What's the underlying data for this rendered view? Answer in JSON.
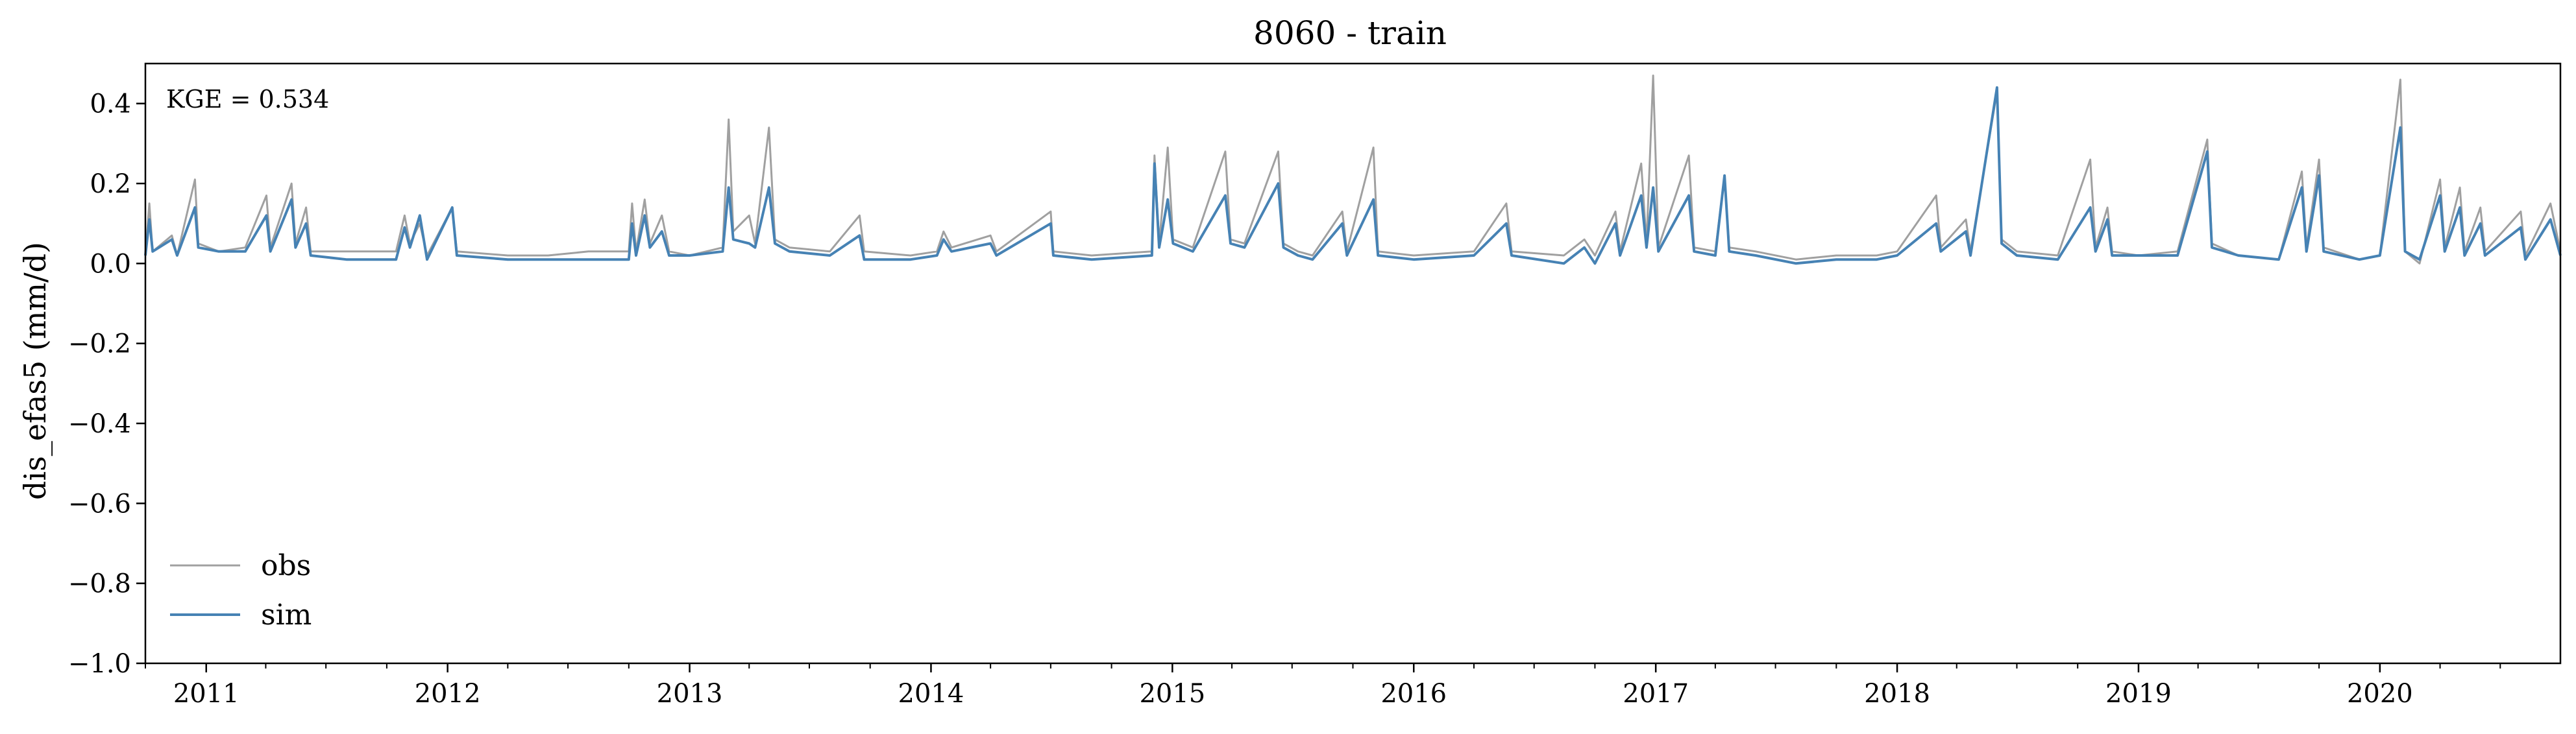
{
  "chart_data": {
    "type": "line",
    "title": "8060 - train",
    "xlabel": "",
    "ylabel": "dis_efas5 (mm/d)",
    "xlim": [
      "2010-10-01",
      "2020-09-30"
    ],
    "ylim": [
      -1.0,
      0.5
    ],
    "y_ticks": [
      -1.0,
      -0.8,
      -0.6,
      -0.4,
      -0.2,
      0.0,
      0.2,
      0.4
    ],
    "y_tick_labels": [
      "−1.0",
      "−0.8",
      "−0.6",
      "−0.4",
      "−0.2",
      "0.0",
      "0.2",
      "0.4"
    ],
    "x_ticks": [
      "2011-01-01",
      "2012-01-01",
      "2013-01-01",
      "2014-01-01",
      "2015-01-01",
      "2016-01-01",
      "2017-01-01",
      "2018-01-01",
      "2019-01-01",
      "2020-01-01"
    ],
    "x_tick_labels": [
      "2011",
      "2012",
      "2013",
      "2014",
      "2015",
      "2016",
      "2017",
      "2018",
      "2019",
      "2020"
    ],
    "grid": false,
    "legend_position": "bottom-left",
    "annotation": "KGE = 0.534",
    "series": [
      {
        "name": "obs",
        "color": "#a0a0a0",
        "points": [
          [
            "2010-10-01",
            0.02
          ],
          [
            "2010-10-07",
            0.15
          ],
          [
            "2010-10-12",
            0.03
          ],
          [
            "2010-11-10",
            0.07
          ],
          [
            "2010-11-18",
            0.02
          ],
          [
            "2010-12-15",
            0.21
          ],
          [
            "2010-12-20",
            0.05
          ],
          [
            "2011-01-20",
            0.03
          ],
          [
            "2011-03-01",
            0.04
          ],
          [
            "2011-04-02",
            0.17
          ],
          [
            "2011-04-08",
            0.04
          ],
          [
            "2011-05-10",
            0.2
          ],
          [
            "2011-05-16",
            0.05
          ],
          [
            "2011-06-01",
            0.14
          ],
          [
            "2011-06-08",
            0.03
          ],
          [
            "2011-08-01",
            0.03
          ],
          [
            "2011-10-15",
            0.03
          ],
          [
            "2011-10-28",
            0.12
          ],
          [
            "2011-11-05",
            0.05
          ],
          [
            "2011-11-20",
            0.1
          ],
          [
            "2011-12-01",
            0.02
          ],
          [
            "2012-01-08",
            0.14
          ],
          [
            "2012-01-15",
            0.03
          ],
          [
            "2012-04-01",
            0.02
          ],
          [
            "2012-06-01",
            0.02
          ],
          [
            "2012-08-01",
            0.03
          ],
          [
            "2012-10-01",
            0.03
          ],
          [
            "2012-10-06",
            0.15
          ],
          [
            "2012-10-12",
            0.03
          ],
          [
            "2012-10-25",
            0.16
          ],
          [
            "2012-11-02",
            0.05
          ],
          [
            "2012-11-20",
            0.12
          ],
          [
            "2012-12-01",
            0.03
          ],
          [
            "2013-01-01",
            0.02
          ],
          [
            "2013-02-20",
            0.04
          ],
          [
            "2013-03-01",
            0.36
          ],
          [
            "2013-03-08",
            0.08
          ],
          [
            "2013-04-01",
            0.12
          ],
          [
            "2013-04-10",
            0.05
          ],
          [
            "2013-05-01",
            0.34
          ],
          [
            "2013-05-10",
            0.06
          ],
          [
            "2013-06-01",
            0.04
          ],
          [
            "2013-08-01",
            0.03
          ],
          [
            "2013-09-15",
            0.12
          ],
          [
            "2013-09-22",
            0.03
          ],
          [
            "2013-12-01",
            0.02
          ],
          [
            "2014-01-10",
            0.03
          ],
          [
            "2014-01-20",
            0.08
          ],
          [
            "2014-02-01",
            0.04
          ],
          [
            "2014-04-01",
            0.07
          ],
          [
            "2014-04-10",
            0.03
          ],
          [
            "2014-07-01",
            0.13
          ],
          [
            "2014-07-05",
            0.03
          ],
          [
            "2014-09-01",
            0.02
          ],
          [
            "2014-12-01",
            0.03
          ],
          [
            "2014-12-05",
            0.27
          ],
          [
            "2014-12-12",
            0.05
          ],
          [
            "2014-12-25",
            0.29
          ],
          [
            "2015-01-02",
            0.06
          ],
          [
            "2015-02-01",
            0.04
          ],
          [
            "2015-03-22",
            0.28
          ],
          [
            "2015-03-30",
            0.06
          ],
          [
            "2015-04-20",
            0.05
          ],
          [
            "2015-06-10",
            0.28
          ],
          [
            "2015-06-18",
            0.05
          ],
          [
            "2015-07-10",
            0.03
          ],
          [
            "2015-08-01",
            0.02
          ],
          [
            "2015-09-15",
            0.13
          ],
          [
            "2015-09-22",
            0.03
          ],
          [
            "2015-11-01",
            0.29
          ],
          [
            "2015-11-08",
            0.03
          ],
          [
            "2016-01-01",
            0.02
          ],
          [
            "2016-04-01",
            0.03
          ],
          [
            "2016-05-20",
            0.15
          ],
          [
            "2016-05-28",
            0.03
          ],
          [
            "2016-08-15",
            0.02
          ],
          [
            "2016-09-15",
            0.06
          ],
          [
            "2016-10-01",
            0.02
          ],
          [
            "2016-11-01",
            0.13
          ],
          [
            "2016-11-08",
            0.03
          ],
          [
            "2016-12-10",
            0.25
          ],
          [
            "2016-12-18",
            0.05
          ],
          [
            "2016-12-28",
            0.47
          ],
          [
            "2017-01-05",
            0.04
          ],
          [
            "2017-02-20",
            0.27
          ],
          [
            "2017-02-28",
            0.04
          ],
          [
            "2017-04-01",
            0.03
          ],
          [
            "2017-04-15",
            0.22
          ],
          [
            "2017-04-22",
            0.04
          ],
          [
            "2017-06-01",
            0.03
          ],
          [
            "2017-08-01",
            0.01
          ],
          [
            "2017-10-01",
            0.02
          ],
          [
            "2017-12-01",
            0.02
          ],
          [
            "2018-01-01",
            0.03
          ],
          [
            "2018-03-01",
            0.17
          ],
          [
            "2018-03-08",
            0.04
          ],
          [
            "2018-04-15",
            0.11
          ],
          [
            "2018-04-22",
            0.03
          ],
          [
            "2018-06-01",
            0.43
          ],
          [
            "2018-06-08",
            0.06
          ],
          [
            "2018-07-01",
            0.03
          ],
          [
            "2018-09-01",
            0.02
          ],
          [
            "2018-10-20",
            0.26
          ],
          [
            "2018-10-28",
            0.04
          ],
          [
            "2018-11-15",
            0.14
          ],
          [
            "2018-11-22",
            0.03
          ],
          [
            "2019-01-01",
            0.02
          ],
          [
            "2019-03-01",
            0.03
          ],
          [
            "2019-04-15",
            0.31
          ],
          [
            "2019-04-22",
            0.05
          ],
          [
            "2019-06-01",
            0.02
          ],
          [
            "2019-08-01",
            0.01
          ],
          [
            "2019-09-05",
            0.23
          ],
          [
            "2019-09-12",
            0.04
          ],
          [
            "2019-10-01",
            0.26
          ],
          [
            "2019-10-08",
            0.04
          ],
          [
            "2019-12-01",
            0.01
          ],
          [
            "2020-01-01",
            0.02
          ],
          [
            "2020-02-01",
            0.46
          ],
          [
            "2020-02-08",
            0.03
          ],
          [
            "2020-03-01",
            0.0
          ],
          [
            "2020-04-01",
            0.21
          ],
          [
            "2020-04-08",
            0.04
          ],
          [
            "2020-05-01",
            0.19
          ],
          [
            "2020-05-08",
            0.03
          ],
          [
            "2020-06-01",
            0.14
          ],
          [
            "2020-06-08",
            0.03
          ],
          [
            "2020-08-01",
            0.13
          ],
          [
            "2020-08-08",
            0.02
          ],
          [
            "2020-09-15",
            0.15
          ],
          [
            "2020-09-30",
            0.03
          ]
        ]
      },
      {
        "name": "sim",
        "color": "#4682b4",
        "points": [
          [
            "2010-10-01",
            0.02
          ],
          [
            "2010-10-07",
            0.11
          ],
          [
            "2010-10-12",
            0.03
          ],
          [
            "2010-11-10",
            0.06
          ],
          [
            "2010-11-18",
            0.02
          ],
          [
            "2010-12-15",
            0.14
          ],
          [
            "2010-12-20",
            0.04
          ],
          [
            "2011-01-20",
            0.03
          ],
          [
            "2011-03-01",
            0.03
          ],
          [
            "2011-04-02",
            0.12
          ],
          [
            "2011-04-08",
            0.03
          ],
          [
            "2011-05-10",
            0.16
          ],
          [
            "2011-05-16",
            0.04
          ],
          [
            "2011-06-01",
            0.1
          ],
          [
            "2011-06-08",
            0.02
          ],
          [
            "2011-08-01",
            0.01
          ],
          [
            "2011-10-15",
            0.01
          ],
          [
            "2011-10-28",
            0.09
          ],
          [
            "2011-11-05",
            0.04
          ],
          [
            "2011-11-20",
            0.12
          ],
          [
            "2011-12-01",
            0.01
          ],
          [
            "2012-01-08",
            0.14
          ],
          [
            "2012-01-15",
            0.02
          ],
          [
            "2012-04-01",
            0.01
          ],
          [
            "2012-06-01",
            0.01
          ],
          [
            "2012-08-01",
            0.01
          ],
          [
            "2012-10-01",
            0.01
          ],
          [
            "2012-10-06",
            0.1
          ],
          [
            "2012-10-12",
            0.02
          ],
          [
            "2012-10-25",
            0.12
          ],
          [
            "2012-11-02",
            0.04
          ],
          [
            "2012-11-20",
            0.08
          ],
          [
            "2012-12-01",
            0.02
          ],
          [
            "2013-01-01",
            0.02
          ],
          [
            "2013-02-20",
            0.03
          ],
          [
            "2013-03-01",
            0.19
          ],
          [
            "2013-03-08",
            0.06
          ],
          [
            "2013-04-01",
            0.05
          ],
          [
            "2013-04-10",
            0.04
          ],
          [
            "2013-05-01",
            0.19
          ],
          [
            "2013-05-10",
            0.05
          ],
          [
            "2013-06-01",
            0.03
          ],
          [
            "2013-08-01",
            0.02
          ],
          [
            "2013-09-15",
            0.07
          ],
          [
            "2013-09-22",
            0.01
          ],
          [
            "2013-12-01",
            0.01
          ],
          [
            "2014-01-10",
            0.02
          ],
          [
            "2014-01-20",
            0.06
          ],
          [
            "2014-02-01",
            0.03
          ],
          [
            "2014-04-01",
            0.05
          ],
          [
            "2014-04-10",
            0.02
          ],
          [
            "2014-07-01",
            0.1
          ],
          [
            "2014-07-05",
            0.02
          ],
          [
            "2014-09-01",
            0.01
          ],
          [
            "2014-12-01",
            0.02
          ],
          [
            "2014-12-05",
            0.25
          ],
          [
            "2014-12-12",
            0.04
          ],
          [
            "2014-12-25",
            0.16
          ],
          [
            "2015-01-02",
            0.05
          ],
          [
            "2015-02-01",
            0.03
          ],
          [
            "2015-03-22",
            0.17
          ],
          [
            "2015-03-30",
            0.05
          ],
          [
            "2015-04-20",
            0.04
          ],
          [
            "2015-06-10",
            0.2
          ],
          [
            "2015-06-18",
            0.04
          ],
          [
            "2015-07-10",
            0.02
          ],
          [
            "2015-08-01",
            0.01
          ],
          [
            "2015-09-15",
            0.1
          ],
          [
            "2015-09-22",
            0.02
          ],
          [
            "2015-11-01",
            0.16
          ],
          [
            "2015-11-08",
            0.02
          ],
          [
            "2016-01-01",
            0.01
          ],
          [
            "2016-04-01",
            0.02
          ],
          [
            "2016-05-20",
            0.1
          ],
          [
            "2016-05-28",
            0.02
          ],
          [
            "2016-08-15",
            0.0
          ],
          [
            "2016-09-15",
            0.04
          ],
          [
            "2016-10-01",
            0.0
          ],
          [
            "2016-11-01",
            0.1
          ],
          [
            "2016-11-08",
            0.02
          ],
          [
            "2016-12-10",
            0.17
          ],
          [
            "2016-12-18",
            0.04
          ],
          [
            "2016-12-28",
            0.19
          ],
          [
            "2017-01-05",
            0.03
          ],
          [
            "2017-02-20",
            0.17
          ],
          [
            "2017-02-28",
            0.03
          ],
          [
            "2017-04-01",
            0.02
          ],
          [
            "2017-04-15",
            0.22
          ],
          [
            "2017-04-22",
            0.03
          ],
          [
            "2017-06-01",
            0.02
          ],
          [
            "2017-08-01",
            0.0
          ],
          [
            "2017-10-01",
            0.01
          ],
          [
            "2017-12-01",
            0.01
          ],
          [
            "2018-01-01",
            0.02
          ],
          [
            "2018-03-01",
            0.1
          ],
          [
            "2018-03-08",
            0.03
          ],
          [
            "2018-04-15",
            0.08
          ],
          [
            "2018-04-22",
            0.02
          ],
          [
            "2018-06-01",
            0.44
          ],
          [
            "2018-06-08",
            0.05
          ],
          [
            "2018-07-01",
            0.02
          ],
          [
            "2018-09-01",
            0.01
          ],
          [
            "2018-10-20",
            0.14
          ],
          [
            "2018-10-28",
            0.03
          ],
          [
            "2018-11-15",
            0.11
          ],
          [
            "2018-11-22",
            0.02
          ],
          [
            "2019-01-01",
            0.02
          ],
          [
            "2019-03-01",
            0.02
          ],
          [
            "2019-04-15",
            0.28
          ],
          [
            "2019-04-22",
            0.04
          ],
          [
            "2019-06-01",
            0.02
          ],
          [
            "2019-08-01",
            0.01
          ],
          [
            "2019-09-05",
            0.19
          ],
          [
            "2019-09-12",
            0.03
          ],
          [
            "2019-10-01",
            0.22
          ],
          [
            "2019-10-08",
            0.03
          ],
          [
            "2019-12-01",
            0.01
          ],
          [
            "2020-01-01",
            0.02
          ],
          [
            "2020-02-01",
            0.34
          ],
          [
            "2020-02-08",
            0.03
          ],
          [
            "2020-03-01",
            0.01
          ],
          [
            "2020-04-01",
            0.17
          ],
          [
            "2020-04-08",
            0.03
          ],
          [
            "2020-05-01",
            0.14
          ],
          [
            "2020-05-08",
            0.02
          ],
          [
            "2020-06-01",
            0.1
          ],
          [
            "2020-06-08",
            0.02
          ],
          [
            "2020-08-01",
            0.09
          ],
          [
            "2020-08-08",
            0.01
          ],
          [
            "2020-09-15",
            0.11
          ],
          [
            "2020-09-30",
            0.02
          ]
        ]
      }
    ]
  }
}
